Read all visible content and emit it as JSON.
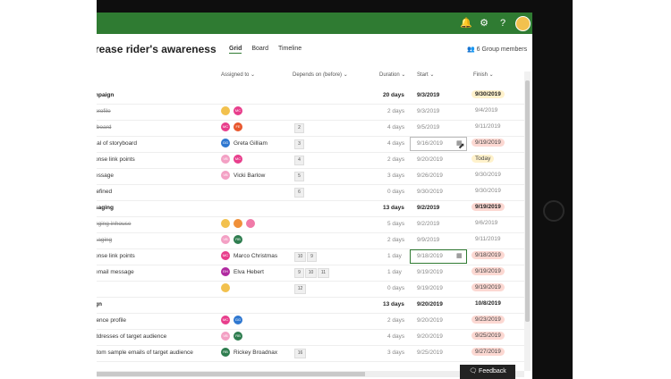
{
  "topbar": {
    "icons": [
      "bell-icon",
      "gear-icon",
      "help-icon"
    ],
    "avatar": "user-avatar"
  },
  "plan": {
    "title": "rease rider's awareness",
    "tabs": [
      {
        "label": "Grid",
        "active": true
      },
      {
        "label": "Board",
        "active": false
      },
      {
        "label": "Timeline",
        "active": false
      }
    ],
    "members_label": "6 Group members"
  },
  "columns": {
    "assigned": "Assigned to",
    "depends": "Depends on (before)",
    "duration": "Duration",
    "start": "Start",
    "finish": "Finish"
  },
  "rows": [
    {
      "name": "npaign",
      "style": "bold",
      "assigned": [],
      "depends": [],
      "duration": "20 days",
      "start": "9/3/2019",
      "finish": "9/30/2019",
      "finish_style": "bold-amber"
    },
    {
      "name": "profile",
      "style": "strike",
      "assigned": [
        "yellow",
        "MC"
      ],
      "depends": [],
      "duration": "2 days",
      "start": "9/3/2019",
      "finish": "9/4/2019",
      "finish_style": "plain"
    },
    {
      "name": "tboard",
      "style": "strike",
      "assigned": [
        "MC",
        "FE"
      ],
      "depends": [
        "2"
      ],
      "duration": "4 days",
      "start": "9/5/2019",
      "finish": "9/11/2019",
      "finish_style": "plain"
    },
    {
      "name": "ral of storyboard",
      "style": "normal",
      "assigned": [
        "GG"
      ],
      "assigned_name": "Greta Gilliam",
      "depends": [
        "3"
      ],
      "duration": "4 days",
      "start": "9/16/2019",
      "start_box": "normal",
      "finish": "9/19/2019",
      "finish_style": "red"
    },
    {
      "name": "onse link points",
      "style": "normal",
      "assigned": [
        "VB",
        "MC"
      ],
      "depends": [
        "4"
      ],
      "duration": "2 days",
      "start": "9/20/2019",
      "finish": "Today",
      "finish_style": "amber"
    },
    {
      "name": "essage",
      "style": "normal",
      "assigned": [
        "VB"
      ],
      "assigned_name": "Vicki Barlow",
      "depends": [
        "5"
      ],
      "duration": "3 days",
      "start": "9/26/2019",
      "finish": "9/30/2019",
      "finish_style": "plain"
    },
    {
      "name": "lefined",
      "style": "normal",
      "assigned": [],
      "depends": [
        "6"
      ],
      "duration": "0 days",
      "start": "9/30/2019",
      "finish": "9/30/2019",
      "finish_style": "plain"
    },
    {
      "name": "saging",
      "style": "bold",
      "assigned": [],
      "depends": [],
      "duration": "13 days",
      "start": "9/2/2019",
      "finish": "9/19/2019",
      "finish_style": "bold-red"
    },
    {
      "name": "nging inhouse",
      "style": "strike",
      "assigned": [
        "yellow",
        "orange",
        "pink"
      ],
      "depends": [],
      "duration": "5 days",
      "start": "9/2/2019",
      "finish": "9/6/2019",
      "finish_style": "plain"
    },
    {
      "name": "saging",
      "style": "strike",
      "assigned": [
        "VB",
        "RB"
      ],
      "depends": [],
      "duration": "2 days",
      "start": "9/9/2019",
      "finish": "9/11/2019",
      "finish_style": "plain"
    },
    {
      "name": "onse link points",
      "style": "normal",
      "assigned": [
        "MC"
      ],
      "assigned_name": "Marco Christmas",
      "depends": [
        "10",
        "9"
      ],
      "duration": "1 day",
      "start": "9/18/2019",
      "start_box": "active",
      "finish": "9/18/2019",
      "finish_style": "red"
    },
    {
      "name": "email message",
      "style": "normal",
      "assigned": [
        "EH"
      ],
      "assigned_name": "Elva Hebert",
      "depends": [
        "9",
        "10",
        "11"
      ],
      "duration": "1 day",
      "start": "9/19/2019",
      "finish": "9/19/2019",
      "finish_style": "red"
    },
    {
      "name": "",
      "style": "normal",
      "assigned": [
        "yellow"
      ],
      "depends": [
        "12"
      ],
      "duration": "0 days",
      "start": "9/19/2019",
      "finish": "9/19/2019",
      "finish_style": "red"
    },
    {
      "name": "gn",
      "style": "bold",
      "assigned": [],
      "depends": [],
      "duration": "13 days",
      "start": "9/20/2019",
      "finish": "10/8/2019",
      "finish_style": "bold"
    },
    {
      "name": "ience profile",
      "style": "normal",
      "assigned": [
        "MC",
        "GG"
      ],
      "depends": [],
      "duration": "2 days",
      "start": "9/20/2019",
      "finish": "9/23/2019",
      "finish_style": "red"
    },
    {
      "name": "ddresses of target audience",
      "style": "normal",
      "assigned": [
        "VB",
        "RB"
      ],
      "depends": [],
      "duration": "4 days",
      "start": "9/20/2019",
      "finish": "9/25/2019",
      "finish_style": "red"
    },
    {
      "name": "dom sample emails of target audience",
      "style": "normal",
      "assigned": [
        "RB"
      ],
      "assigned_name": "Rickey Broadnax",
      "depends": [
        "16"
      ],
      "duration": "3 days",
      "start": "9/25/2019",
      "finish": "9/27/2019",
      "finish_style": "red"
    }
  ],
  "feedback_label": "Feedback",
  "colors": {
    "brand": "#2f7b32",
    "MC": "#e83e8c",
    "FE": "#e8572d",
    "GG": "#2e77d0",
    "VB": "#f3a0c4",
    "RB": "#2e7d4f",
    "EH": "#b02aa0",
    "yellow": "#f2c14e",
    "orange": "#f0903a",
    "pink": "#f07aa8"
  }
}
